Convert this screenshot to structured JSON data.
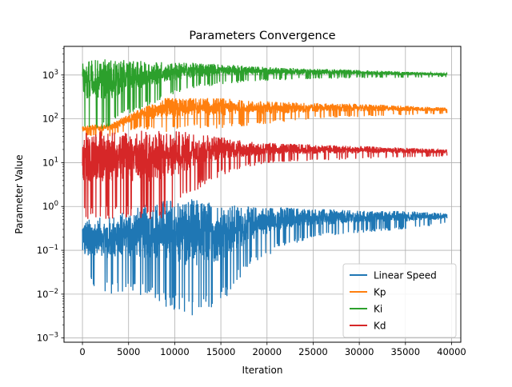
{
  "chart_data": {
    "type": "line",
    "title": "Parameters Convergence",
    "xlabel": "Iteration",
    "ylabel": "Parameter Value",
    "xlim": [
      -2000,
      41000
    ],
    "ylim": [
      0.0008,
      4500
    ],
    "yscale": "log",
    "grid": true,
    "legend_position": "lower right",
    "x_ticks": [
      0,
      5000,
      10000,
      15000,
      20000,
      25000,
      30000,
      35000,
      40000
    ],
    "x_tick_labels": [
      "0",
      "5000",
      "10000",
      "15000",
      "20000",
      "25000",
      "30000",
      "35000",
      "40000"
    ],
    "y_ticks": [
      0.001,
      0.01,
      0.1,
      1,
      10,
      100,
      1000
    ],
    "y_tick_exponents": [
      "−3",
      "−2",
      "−1",
      "0",
      "1",
      "2",
      "3"
    ],
    "y_tick_base": "10",
    "series": [
      {
        "name": "Linear Speed",
        "color": "#1f77b4",
        "points": [
          {
            "x": 0,
            "low": 0.02,
            "high": 0.5
          },
          {
            "x": 3000,
            "low": 0.01,
            "high": 0.6
          },
          {
            "x": 6000,
            "low": 0.01,
            "high": 1.0
          },
          {
            "x": 9000,
            "low": 0.005,
            "high": 1.5
          },
          {
            "x": 12000,
            "low": 0.003,
            "high": 1.5
          },
          {
            "x": 15000,
            "low": 0.006,
            "high": 1.2
          },
          {
            "x": 18000,
            "low": 0.04,
            "high": 1.0
          },
          {
            "x": 21000,
            "low": 0.1,
            "high": 1.0
          },
          {
            "x": 25000,
            "low": 0.2,
            "high": 0.9
          },
          {
            "x": 30000,
            "low": 0.25,
            "high": 0.8
          },
          {
            "x": 35000,
            "low": 0.3,
            "high": 0.8
          },
          {
            "x": 39500,
            "low": 0.4,
            "high": 0.7
          }
        ]
      },
      {
        "name": "Kp",
        "color": "#ff7f0e",
        "points": [
          {
            "x": 0,
            "low": 40,
            "high": 70
          },
          {
            "x": 3000,
            "low": 40,
            "high": 80
          },
          {
            "x": 6000,
            "low": 60,
            "high": 160
          },
          {
            "x": 9000,
            "low": 50,
            "high": 300
          },
          {
            "x": 12000,
            "low": 60,
            "high": 300
          },
          {
            "x": 15000,
            "low": 60,
            "high": 300
          },
          {
            "x": 18000,
            "low": 70,
            "high": 260
          },
          {
            "x": 21000,
            "low": 80,
            "high": 250
          },
          {
            "x": 25000,
            "low": 100,
            "high": 230
          },
          {
            "x": 30000,
            "low": 110,
            "high": 220
          },
          {
            "x": 35000,
            "low": 120,
            "high": 200
          },
          {
            "x": 39500,
            "low": 130,
            "high": 180
          }
        ]
      },
      {
        "name": "Ki",
        "color": "#2ca02c",
        "points": [
          {
            "x": 0,
            "low": 50,
            "high": 2300
          },
          {
            "x": 3000,
            "low": 60,
            "high": 2300
          },
          {
            "x": 6000,
            "low": 150,
            "high": 2100
          },
          {
            "x": 9000,
            "low": 300,
            "high": 2000
          },
          {
            "x": 12000,
            "low": 500,
            "high": 1900
          },
          {
            "x": 15000,
            "low": 600,
            "high": 1800
          },
          {
            "x": 18000,
            "low": 700,
            "high": 1600
          },
          {
            "x": 21000,
            "low": 750,
            "high": 1500
          },
          {
            "x": 25000,
            "low": 800,
            "high": 1400
          },
          {
            "x": 30000,
            "low": 850,
            "high": 1300
          },
          {
            "x": 35000,
            "low": 850,
            "high": 1200
          },
          {
            "x": 39500,
            "low": 900,
            "high": 1100
          }
        ]
      },
      {
        "name": "Kd",
        "color": "#d62728",
        "points": [
          {
            "x": 0,
            "low": 0.5,
            "high": 55
          },
          {
            "x": 3000,
            "low": 0.5,
            "high": 55
          },
          {
            "x": 6000,
            "low": 0.5,
            "high": 55
          },
          {
            "x": 9000,
            "low": 0.5,
            "high": 55
          },
          {
            "x": 12000,
            "low": 2,
            "high": 50
          },
          {
            "x": 15000,
            "low": 5,
            "high": 40
          },
          {
            "x": 18000,
            "low": 8,
            "high": 30
          },
          {
            "x": 21000,
            "low": 10,
            "high": 28
          },
          {
            "x": 25000,
            "low": 11,
            "high": 26
          },
          {
            "x": 30000,
            "low": 12,
            "high": 24
          },
          {
            "x": 35000,
            "low": 13,
            "high": 22
          },
          {
            "x": 39500,
            "low": 14,
            "high": 20
          }
        ]
      }
    ]
  }
}
